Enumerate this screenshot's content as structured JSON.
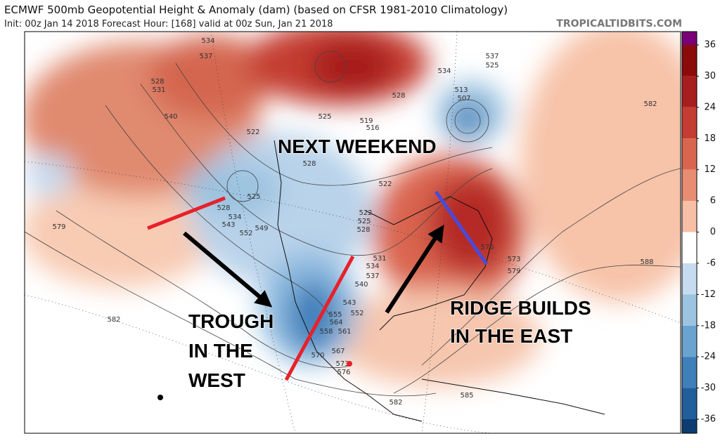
{
  "header": {
    "title": "ECMWF 500mb Geopotential Height & Anomaly (dam) (based on CFSR 1981-2010 Climatology)",
    "subtitle": "Init: 00z Jan 14 2018   Forecast Hour: [168]   valid at 00z Sun, Jan 21 2018",
    "credit": "TROPICALTIDBITS.COM"
  },
  "annotations": {
    "next_weekend": "NEXT WEEKEND",
    "trough": [
      "TROUGH",
      "IN THE",
      "WEST"
    ],
    "ridge": [
      "RIDGE BUILDS",
      "IN THE EAST"
    ]
  },
  "colorbar": {
    "ticks": [
      36,
      30,
      24,
      18,
      12,
      6,
      0,
      -6,
      -12,
      -18,
      -24,
      -30,
      -36
    ],
    "colors": [
      "#7a0177",
      "#8b0a0a",
      "#a81e1e",
      "#c43c32",
      "#d9654f",
      "#e98d72",
      "#f6bfa6",
      "#ffffff",
      "#c6dbef",
      "#9cc3e0",
      "#6aa3cf",
      "#3f7fba",
      "#215e9c",
      "#0d3c73"
    ]
  },
  "map": {
    "contour_labels": [
      534,
      537,
      528,
      531,
      540,
      525,
      522,
      528,
      525,
      528,
      534,
      543,
      552,
      549,
      579,
      522,
      522,
      525,
      528,
      531,
      534,
      537,
      540,
      543,
      552,
      555,
      558,
      561,
      564,
      567,
      570,
      573,
      576,
      582,
      582,
      585,
      576,
      573,
      579,
      588,
      582,
      537,
      525,
      513,
      507,
      534,
      528,
      519,
      516
    ]
  }
}
